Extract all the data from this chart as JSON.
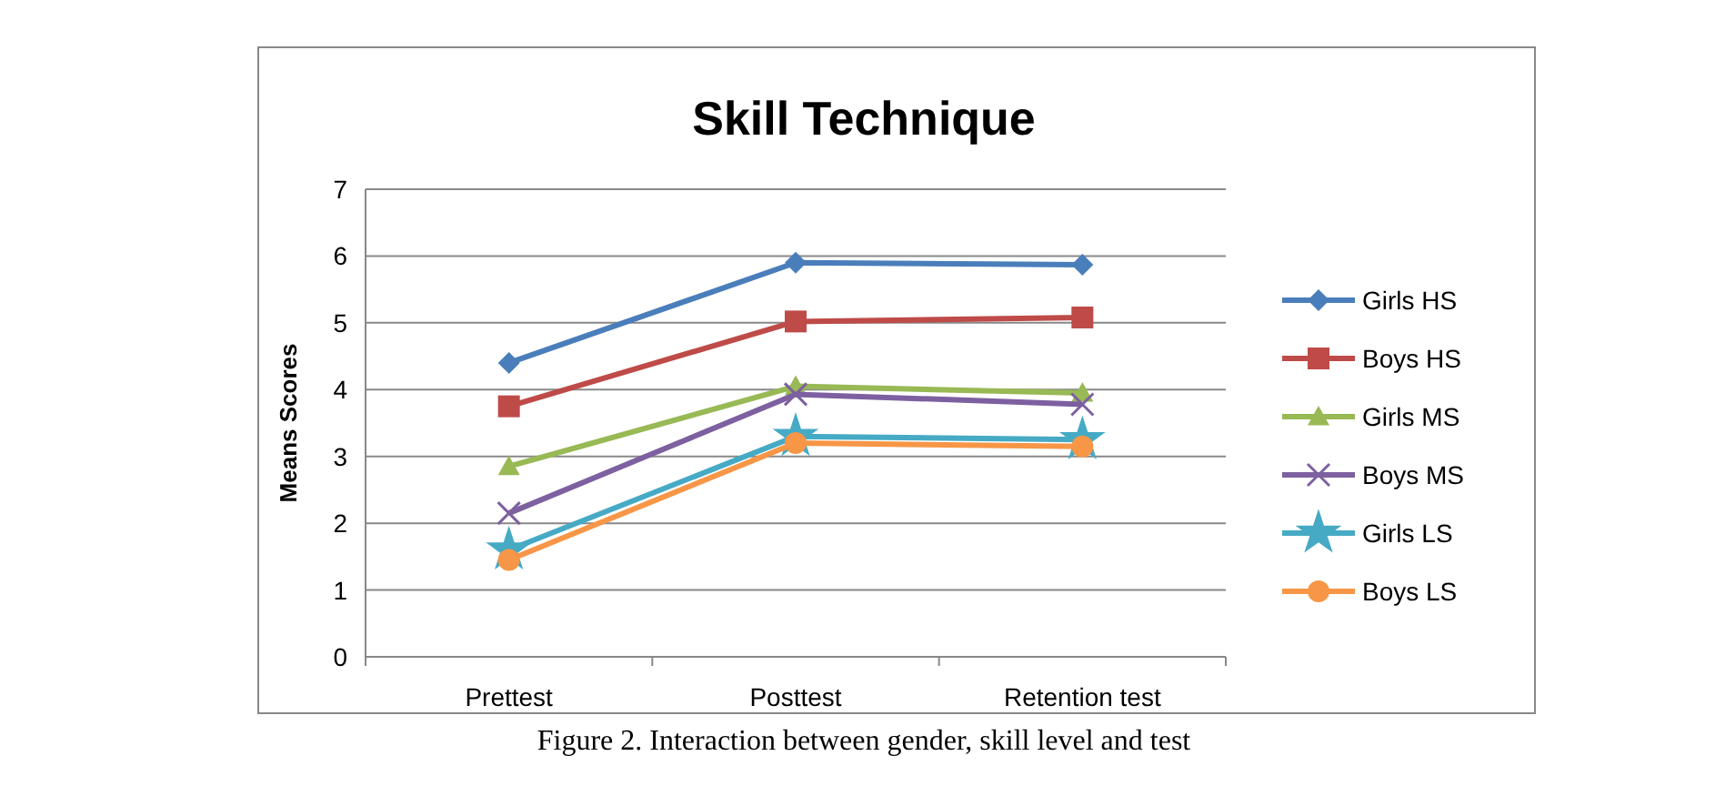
{
  "chart_data": {
    "type": "line",
    "title": "Skill Technique",
    "ylabel": "Means Scores",
    "categories": [
      "Prettest",
      "Posttest",
      "Retention test"
    ],
    "series": [
      {
        "name": "Girls HS",
        "color": "#4a7ebb",
        "marker": "diamond",
        "values": [
          4.4,
          5.9,
          5.87
        ]
      },
      {
        "name": "Boys HS",
        "color": "#be4b48",
        "marker": "square",
        "values": [
          3.75,
          5.02,
          5.08
        ]
      },
      {
        "name": "Girls MS",
        "color": "#98b954",
        "marker": "triangle",
        "values": [
          2.85,
          4.05,
          3.95
        ]
      },
      {
        "name": "Boys MS",
        "color": "#7d60a0",
        "marker": "cross",
        "values": [
          2.15,
          3.93,
          3.78
        ]
      },
      {
        "name": "Girls LS",
        "color": "#46aac5",
        "marker": "star",
        "values": [
          1.6,
          3.3,
          3.25
        ]
      },
      {
        "name": "Boys LS",
        "color": "#f79646",
        "marker": "circle",
        "values": [
          1.45,
          3.2,
          3.15
        ]
      }
    ],
    "ylim": [
      0,
      7
    ],
    "yticks": [
      0,
      1,
      2,
      3,
      4,
      5,
      6,
      7
    ],
    "grid": "y",
    "legend": "right",
    "annotations": [
      "Figure 2. Interaction between gender, skill level and test"
    ]
  }
}
